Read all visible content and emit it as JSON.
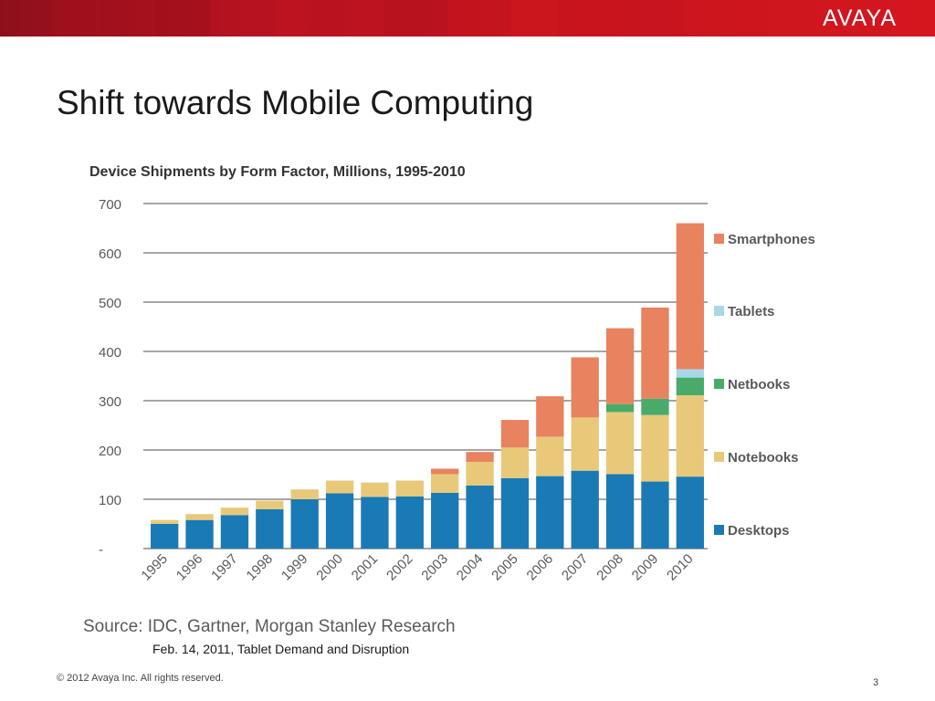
{
  "header": {
    "logo_text": "AVAYA",
    "bar_color": "#c8141d"
  },
  "slide": {
    "title": "Shift towards Mobile Computing",
    "source": "Source: IDC, Gartner, Morgan Stanley Research",
    "subsource": "Feb. 14, 2011, Tablet Demand and Disruption",
    "copyright": "© 2012 Avaya Inc. All rights reserved.",
    "page_number": "3"
  },
  "chart_data": {
    "type": "bar",
    "stacked": true,
    "title": "Device Shipments by Form Factor, Millions, 1995-2010",
    "xlabel": "",
    "ylabel": "",
    "ylim": [
      0,
      700
    ],
    "yticks": [
      0,
      100,
      200,
      300,
      400,
      500,
      600,
      700
    ],
    "ytick_labels": [
      "-",
      "100",
      "200",
      "300",
      "400",
      "500",
      "600",
      "700"
    ],
    "grid": true,
    "legend_position": "right",
    "categories": [
      "1995",
      "1996",
      "1997",
      "1998",
      "1999",
      "2000",
      "2001",
      "2002",
      "2003",
      "2004",
      "2005",
      "2006",
      "2007",
      "2008",
      "2009",
      "2010"
    ],
    "series": [
      {
        "name": "Desktops",
        "color": "#1a7ab5",
        "values": [
          50,
          58,
          68,
          80,
          100,
          112,
          105,
          106,
          113,
          128,
          143,
          147,
          158,
          151,
          136,
          146
        ]
      },
      {
        "name": "Notebooks",
        "color": "#e8c97a",
        "values": [
          8,
          12,
          15,
          17,
          20,
          26,
          29,
          32,
          38,
          48,
          62,
          80,
          108,
          126,
          135,
          165
        ]
      },
      {
        "name": "Netbooks",
        "color": "#4aaa6a",
        "values": [
          0,
          0,
          0,
          0,
          0,
          0,
          0,
          0,
          0,
          0,
          0,
          0,
          0,
          16,
          33,
          36
        ]
      },
      {
        "name": "Tablets",
        "color": "#a8d8e8",
        "values": [
          0,
          0,
          0,
          0,
          0,
          0,
          0,
          0,
          0,
          0,
          0,
          0,
          0,
          0,
          0,
          17
        ]
      },
      {
        "name": "Smartphones",
        "color": "#e8825f",
        "values": [
          0,
          0,
          0,
          0,
          0,
          0,
          0,
          0,
          11,
          20,
          56,
          82,
          122,
          154,
          185,
          296
        ]
      }
    ],
    "legend_order": [
      "Smartphones",
      "Tablets",
      "Netbooks",
      "Notebooks",
      "Desktops"
    ]
  }
}
